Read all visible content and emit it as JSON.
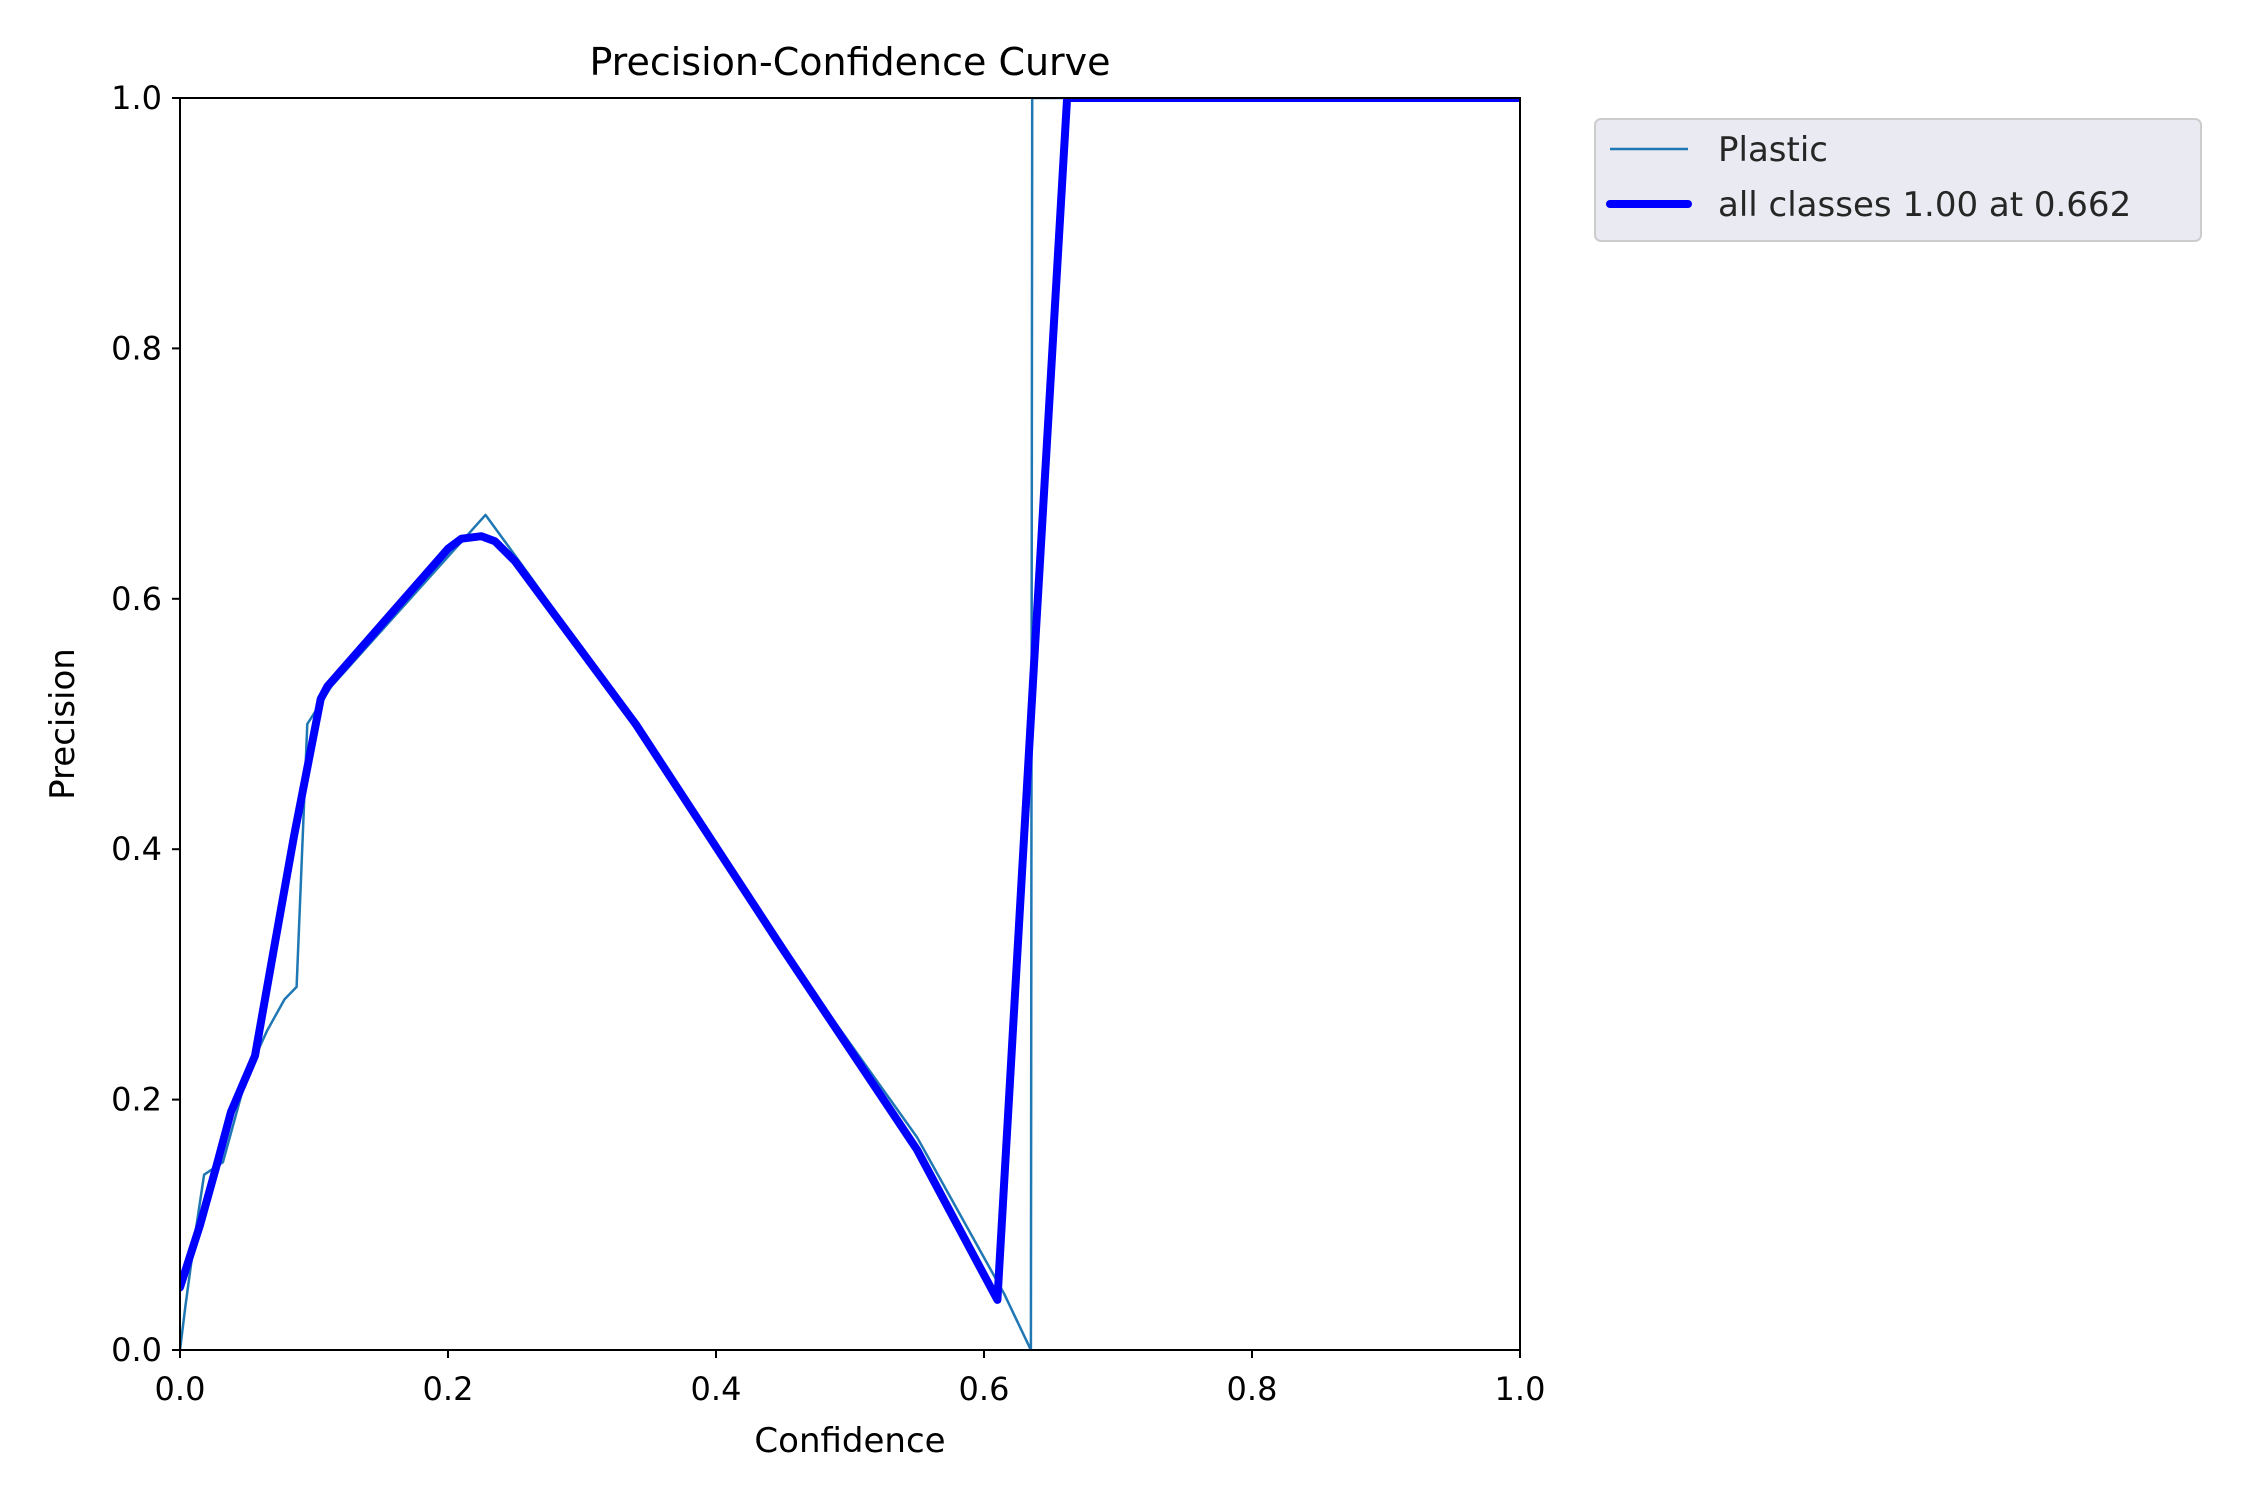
{
  "chart_data": {
    "type": "line",
    "title": "Precision-Confidence Curve",
    "xlabel": "Confidence",
    "ylabel": "Precision",
    "xlim": [
      0.0,
      1.0
    ],
    "ylim": [
      0.0,
      1.0
    ],
    "xticks": [
      "0.0",
      "0.2",
      "0.4",
      "0.6",
      "0.8",
      "1.0"
    ],
    "yticks": [
      "0.0",
      "0.2",
      "0.4",
      "0.6",
      "0.8",
      "1.0"
    ],
    "grid": false,
    "legend_position": "outside top-right",
    "series": [
      {
        "name": "Plastic",
        "color": "#1f77b4",
        "style": "thin",
        "x": [
          0.0,
          0.004,
          0.011,
          0.018,
          0.032,
          0.05,
          0.065,
          0.078,
          0.087,
          0.095,
          0.113,
          0.228,
          0.26,
          0.34,
          0.45,
          0.55,
          0.615,
          0.635,
          0.636,
          1.0
        ],
        "y": [
          0.0,
          0.035,
          0.09,
          0.14,
          0.15,
          0.22,
          0.255,
          0.28,
          0.29,
          0.5,
          0.53,
          0.667,
          0.62,
          0.5,
          0.32,
          0.17,
          0.045,
          0.0,
          1.0,
          1.0
        ]
      },
      {
        "name": "all classes 1.00 at 0.662",
        "color": "#0000ff",
        "style": "thick",
        "x": [
          0.0,
          0.015,
          0.028,
          0.038,
          0.048,
          0.056,
          0.07,
          0.085,
          0.105,
          0.11,
          0.2,
          0.21,
          0.225,
          0.235,
          0.25,
          0.34,
          0.45,
          0.55,
          0.61,
          0.638,
          0.662,
          1.0
        ],
        "y": [
          0.05,
          0.1,
          0.15,
          0.19,
          0.215,
          0.235,
          0.32,
          0.41,
          0.52,
          0.53,
          0.64,
          0.648,
          0.65,
          0.646,
          0.63,
          0.5,
          0.32,
          0.16,
          0.04,
          0.56,
          1.0,
          1.0
        ]
      }
    ]
  }
}
